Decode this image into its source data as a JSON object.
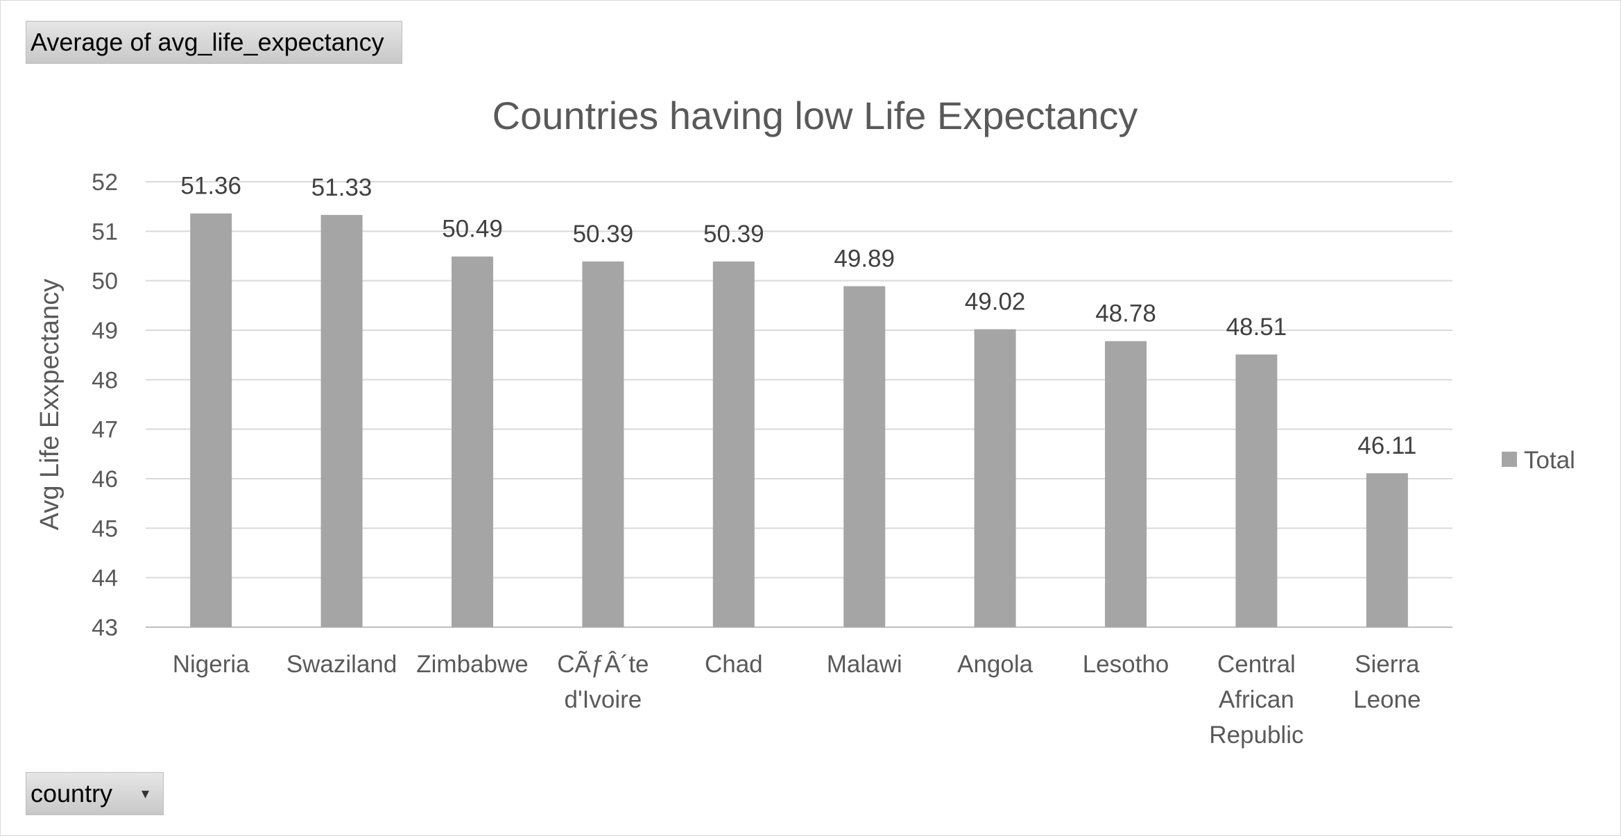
{
  "pivot": {
    "measure_label": "Average  of avg_life_expectancy",
    "field_label": "country",
    "dropdown_glyph": "▾"
  },
  "chart_data": {
    "type": "bar",
    "title": "Countries having low Life Expectancy",
    "xlabel": "",
    "ylabel": "Avg Life Exxpectancy",
    "ylim": [
      43,
      52
    ],
    "yticks": [
      43,
      44,
      45,
      46,
      47,
      48,
      49,
      50,
      51,
      52
    ],
    "grid": true,
    "legend_position": "right",
    "bar_color": "#a5a5a5",
    "categories": [
      [
        "Nigeria"
      ],
      [
        "Swaziland"
      ],
      [
        "Zimbabwe"
      ],
      [
        "CÃƒÂ´te",
        "d'Ivoire"
      ],
      [
        "Chad"
      ],
      [
        "Malawi"
      ],
      [
        "Angola"
      ],
      [
        "Lesotho"
      ],
      [
        "Central",
        "African",
        "Republic"
      ],
      [
        "Sierra",
        "Leone"
      ]
    ],
    "series": [
      {
        "name": "Total",
        "values": [
          51.36,
          51.33,
          50.49,
          50.39,
          50.39,
          49.89,
          49.02,
          48.78,
          48.51,
          46.11
        ]
      }
    ]
  }
}
